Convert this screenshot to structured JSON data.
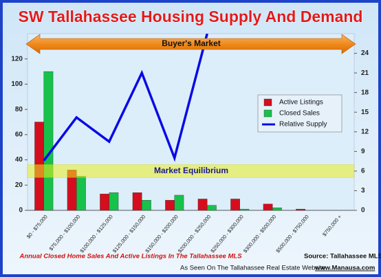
{
  "chart_data": {
    "type": "bar",
    "title": "SW Tallahassee Housing Supply And Demand",
    "categories": [
      "$0 - $75,000",
      "$75,000 - $100,000",
      "$100,000 - $125,000",
      "$125,000 - $150,000",
      "$150,000 - $200,000",
      "$200,000 - $250,000",
      "$250,000 - $300,000",
      "$300,000 - $500,000",
      "$500,000 - $750,000",
      "$750,000 +"
    ],
    "series": [
      {
        "name": "Active Listings",
        "type": "bar",
        "color": "#d40e1e",
        "values": [
          70,
          32,
          13,
          14,
          8,
          9,
          9,
          5,
          1,
          0
        ]
      },
      {
        "name": "Closed Sales",
        "type": "bar",
        "color": "#17c24b",
        "values": [
          110,
          27,
          14,
          8,
          12,
          4,
          1,
          2,
          0,
          0
        ]
      },
      {
        "name": "Relative Supply",
        "type": "line",
        "axis": "y2",
        "color": "#0a0ae6",
        "values": [
          7.6,
          14.2,
          10.5,
          21,
          8,
          27,
          null,
          null,
          null,
          null
        ]
      }
    ],
    "ylim": [
      0,
      140
    ],
    "yticks": [
      0,
      20,
      40,
      60,
      80,
      100,
      120
    ],
    "y2lim": [
      0,
      27
    ],
    "y2ticks": [
      0,
      3,
      6,
      9,
      12,
      15,
      18,
      21,
      24
    ],
    "annotations": {
      "buyers_market": "Buyer's Market",
      "equilibrium": "Market Equilibrium",
      "equilibrium_range": [
        5,
        7
      ]
    },
    "footer": {
      "caption": "Annual Closed Home Sales And Active Listings In The Tallahassee MLS",
      "seen_on": "As Seen On The Tallahassee Real Estate Website",
      "website": "www.Manausa.com",
      "source": "Source: Tallahassee MLS"
    }
  }
}
